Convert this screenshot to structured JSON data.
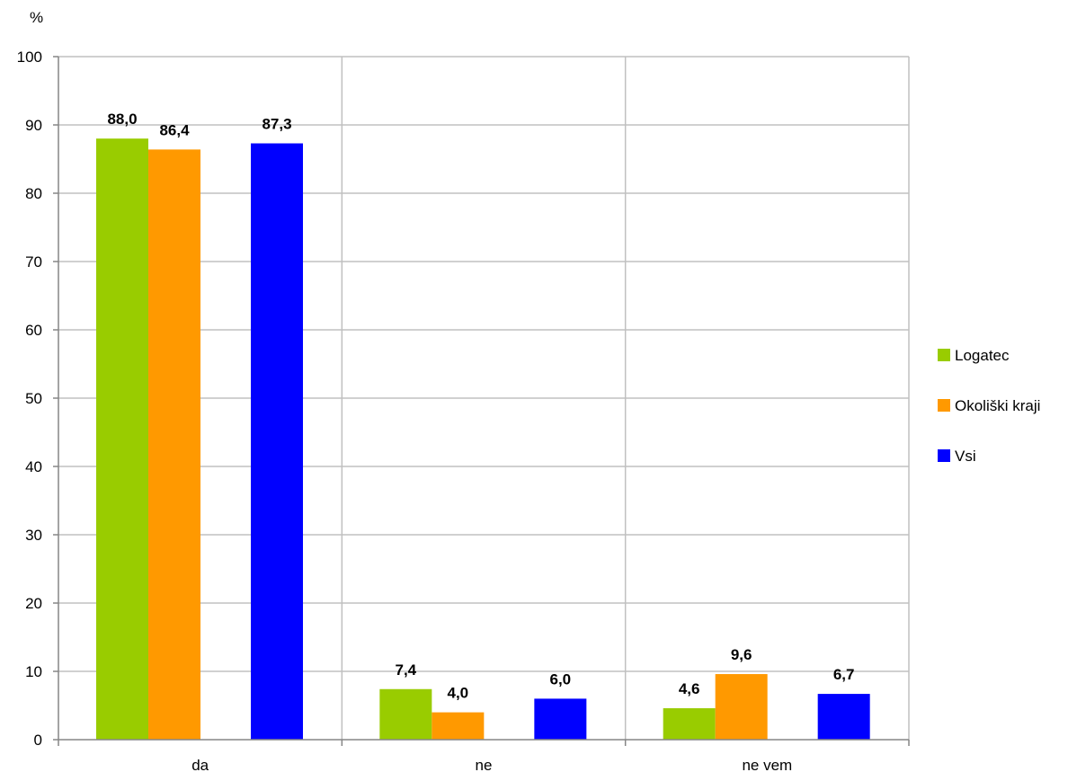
{
  "chart_data": {
    "type": "bar",
    "ylabel": "%",
    "ylim": [
      0,
      100
    ],
    "yticks": [
      0,
      10,
      20,
      30,
      40,
      50,
      60,
      70,
      80,
      90,
      100
    ],
    "grid": true,
    "legend_position": "right",
    "categories": [
      "da",
      "ne",
      "ne vem"
    ],
    "series": [
      {
        "name": "Logatec",
        "color": "#99cc00",
        "values": [
          88.0,
          7.4,
          4.6
        ],
        "labels": [
          "88,0",
          "7,4",
          "4,6"
        ]
      },
      {
        "name": "Okoliški kraji",
        "color": "#ff9900",
        "values": [
          86.4,
          4.0,
          9.6
        ],
        "labels": [
          "86,4",
          "4,0",
          "9,6"
        ]
      },
      {
        "name": "Vsi",
        "color": "#0000ff",
        "values": [
          87.3,
          6.0,
          6.7
        ],
        "labels": [
          "87,3",
          "6,0",
          "6,7"
        ]
      }
    ]
  }
}
